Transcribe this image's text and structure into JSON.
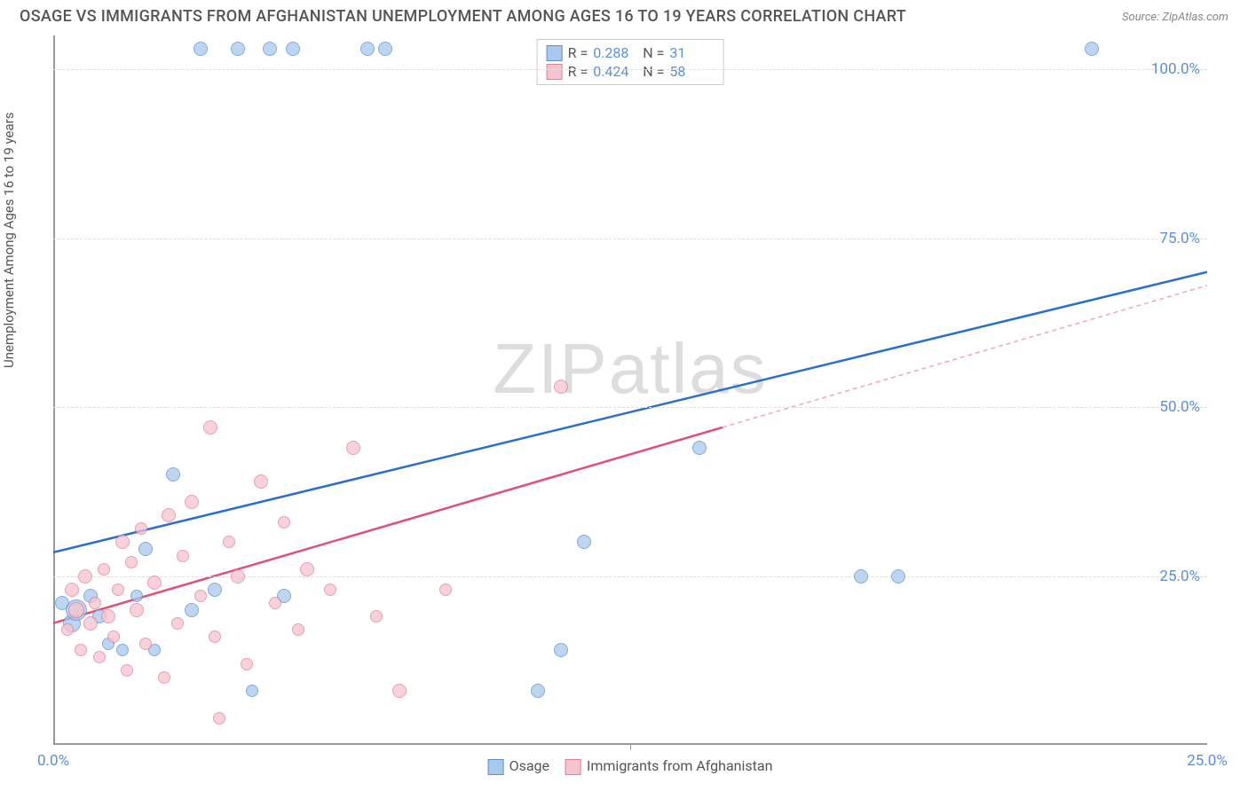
{
  "title": "OSAGE VS IMMIGRANTS FROM AFGHANISTAN UNEMPLOYMENT AMONG AGES 16 TO 19 YEARS CORRELATION CHART",
  "source": "Source: ZipAtlas.com",
  "ylabel": "Unemployment Among Ages 16 to 19 years",
  "watermark": "ZIPatlas",
  "chart": {
    "type": "scatter",
    "xlim": [
      0,
      25
    ],
    "ylim": [
      0,
      105
    ],
    "xtick_labels": [
      "0.0%",
      "25.0%"
    ],
    "xtick_positions": [
      0,
      25
    ],
    "xtick_minor": [
      12.5
    ],
    "ytick_labels": [
      "25.0%",
      "50.0%",
      "75.0%",
      "100.0%"
    ],
    "ytick_positions": [
      25,
      50,
      75,
      100
    ],
    "grid_color": "#dddddd",
    "axis_color": "#999999",
    "background_color": "#ffffff",
    "series": [
      {
        "name": "Osage",
        "color_fill": "#a9c8ec",
        "color_stroke": "#5b8fd6",
        "R": "0.288",
        "N": "31",
        "regression": {
          "x1": 0,
          "y1": 28.5,
          "x2": 25,
          "y2": 70,
          "color": "#2a6fc9",
          "width": 2.5
        },
        "points": [
          {
            "x": 0.2,
            "y": 21,
            "r": 8
          },
          {
            "x": 0.4,
            "y": 18,
            "r": 10
          },
          {
            "x": 0.5,
            "y": 20,
            "r": 12
          },
          {
            "x": 0.8,
            "y": 22,
            "r": 8
          },
          {
            "x": 1.0,
            "y": 19,
            "r": 8
          },
          {
            "x": 1.2,
            "y": 15,
            "r": 7
          },
          {
            "x": 1.5,
            "y": 14,
            "r": 7
          },
          {
            "x": 1.8,
            "y": 22,
            "r": 7
          },
          {
            "x": 2.0,
            "y": 29,
            "r": 8
          },
          {
            "x": 2.2,
            "y": 14,
            "r": 7
          },
          {
            "x": 2.6,
            "y": 40,
            "r": 8
          },
          {
            "x": 3.0,
            "y": 20,
            "r": 8
          },
          {
            "x": 3.2,
            "y": 103,
            "r": 8
          },
          {
            "x": 3.5,
            "y": 23,
            "r": 8
          },
          {
            "x": 4.0,
            "y": 103,
            "r": 8
          },
          {
            "x": 4.3,
            "y": 8,
            "r": 7
          },
          {
            "x": 4.7,
            "y": 103,
            "r": 8
          },
          {
            "x": 5.0,
            "y": 22,
            "r": 8
          },
          {
            "x": 5.2,
            "y": 103,
            "r": 8
          },
          {
            "x": 6.8,
            "y": 103,
            "r": 8
          },
          {
            "x": 7.2,
            "y": 103,
            "r": 8
          },
          {
            "x": 10.5,
            "y": 8,
            "r": 8
          },
          {
            "x": 11.0,
            "y": 14,
            "r": 8
          },
          {
            "x": 11.5,
            "y": 30,
            "r": 8
          },
          {
            "x": 14.0,
            "y": 44,
            "r": 8
          },
          {
            "x": 17.5,
            "y": 25,
            "r": 8
          },
          {
            "x": 18.3,
            "y": 25,
            "r": 8
          },
          {
            "x": 22.5,
            "y": 103,
            "r": 8
          }
        ]
      },
      {
        "name": "Immigrants from Afghanistan",
        "color_fill": "#f5c4cf",
        "color_stroke": "#e57f98",
        "R": "0.424",
        "N": "58",
        "regression": {
          "x1": 0,
          "y1": 18,
          "x2": 14.5,
          "y2": 47,
          "color": "#e04f77",
          "width": 2.5
        },
        "regression_dash": {
          "x1": 14.5,
          "y1": 47,
          "x2": 25,
          "y2": 68,
          "color": "#f0a5b8",
          "width": 1.5
        },
        "points": [
          {
            "x": 0.3,
            "y": 17,
            "r": 7
          },
          {
            "x": 0.4,
            "y": 23,
            "r": 8
          },
          {
            "x": 0.5,
            "y": 20,
            "r": 9
          },
          {
            "x": 0.6,
            "y": 14,
            "r": 7
          },
          {
            "x": 0.7,
            "y": 25,
            "r": 8
          },
          {
            "x": 0.8,
            "y": 18,
            "r": 8
          },
          {
            "x": 0.9,
            "y": 21,
            "r": 7
          },
          {
            "x": 1.0,
            "y": 13,
            "r": 7
          },
          {
            "x": 1.1,
            "y": 26,
            "r": 7
          },
          {
            "x": 1.2,
            "y": 19,
            "r": 8
          },
          {
            "x": 1.3,
            "y": 16,
            "r": 7
          },
          {
            "x": 1.4,
            "y": 23,
            "r": 7
          },
          {
            "x": 1.5,
            "y": 30,
            "r": 8
          },
          {
            "x": 1.6,
            "y": 11,
            "r": 7
          },
          {
            "x": 1.7,
            "y": 27,
            "r": 7
          },
          {
            "x": 1.8,
            "y": 20,
            "r": 8
          },
          {
            "x": 1.9,
            "y": 32,
            "r": 7
          },
          {
            "x": 2.0,
            "y": 15,
            "r": 7
          },
          {
            "x": 2.2,
            "y": 24,
            "r": 8
          },
          {
            "x": 2.4,
            "y": 10,
            "r": 7
          },
          {
            "x": 2.5,
            "y": 34,
            "r": 8
          },
          {
            "x": 2.7,
            "y": 18,
            "r": 7
          },
          {
            "x": 2.8,
            "y": 28,
            "r": 7
          },
          {
            "x": 3.0,
            "y": 36,
            "r": 8
          },
          {
            "x": 3.2,
            "y": 22,
            "r": 7
          },
          {
            "x": 3.4,
            "y": 47,
            "r": 8
          },
          {
            "x": 3.5,
            "y": 16,
            "r": 7
          },
          {
            "x": 3.6,
            "y": 4,
            "r": 7
          },
          {
            "x": 3.8,
            "y": 30,
            "r": 7
          },
          {
            "x": 4.0,
            "y": 25,
            "r": 8
          },
          {
            "x": 4.2,
            "y": 12,
            "r": 7
          },
          {
            "x": 4.5,
            "y": 39,
            "r": 8
          },
          {
            "x": 4.8,
            "y": 21,
            "r": 7
          },
          {
            "x": 5.0,
            "y": 33,
            "r": 7
          },
          {
            "x": 5.3,
            "y": 17,
            "r": 7
          },
          {
            "x": 5.5,
            "y": 26,
            "r": 8
          },
          {
            "x": 6.0,
            "y": 23,
            "r": 7
          },
          {
            "x": 6.5,
            "y": 44,
            "r": 8
          },
          {
            "x": 7.0,
            "y": 19,
            "r": 7
          },
          {
            "x": 7.5,
            "y": 8,
            "r": 8
          },
          {
            "x": 8.5,
            "y": 23,
            "r": 7
          },
          {
            "x": 11.0,
            "y": 53,
            "r": 8
          }
        ]
      }
    ]
  },
  "legend_bottom": {
    "items": [
      {
        "label": "Osage",
        "fill": "#a9c8ec",
        "stroke": "#5b8fd6"
      },
      {
        "label": "Immigrants from Afghanistan",
        "fill": "#f5c4cf",
        "stroke": "#e57f98"
      }
    ]
  }
}
